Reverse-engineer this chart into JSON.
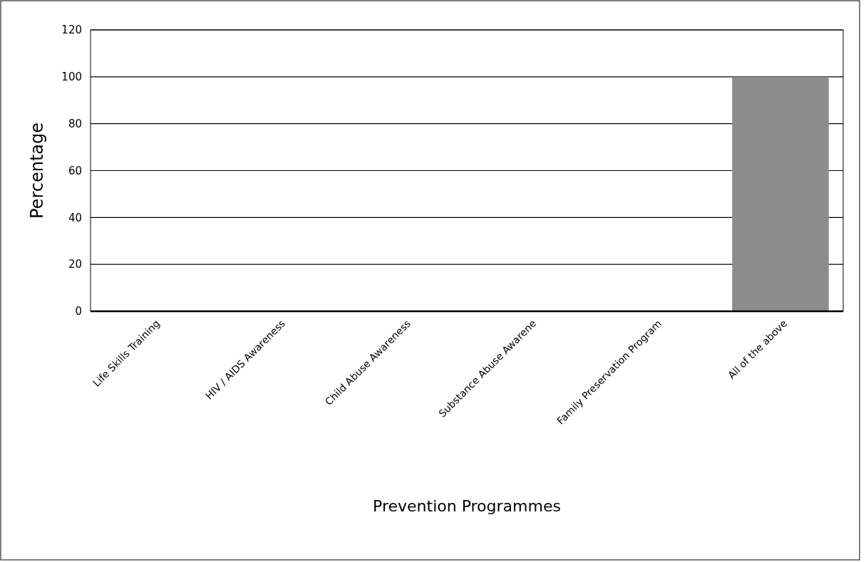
{
  "chart_data": {
    "type": "bar",
    "xlabel": "Prevention Programmes",
    "ylabel": "Percentage",
    "categories": [
      "Life Skills Training",
      "HIV / AIDS Awareness",
      "Child Abuse Awareness",
      "Substance Abuse Awarene",
      "Family Preservation Program",
      "All of the above"
    ],
    "values": [
      0,
      0,
      0,
      0,
      0,
      100
    ],
    "color": "#8c8c8c",
    "ylim": [
      0,
      120
    ],
    "yticks": [
      0,
      20,
      40,
      60,
      80,
      100,
      120
    ],
    "grid": "y"
  }
}
